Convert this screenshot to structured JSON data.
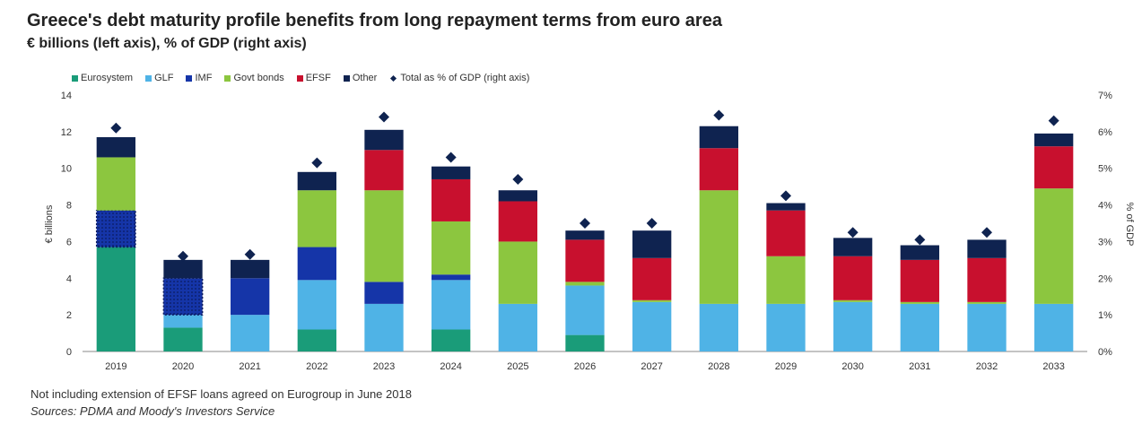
{
  "header": {
    "title": "Greece's debt maturity profile benefits from long repayment terms from euro area",
    "subtitle": "€ billions (left axis), % of GDP (right axis)"
  },
  "legend": {
    "items": [
      {
        "label": "Eurosystem",
        "color": "#1a9c79",
        "marker": "square"
      },
      {
        "label": "GLF",
        "color": "#4fb3e6",
        "marker": "square"
      },
      {
        "label": "IMF",
        "color": "#1535a8",
        "marker": "square"
      },
      {
        "label": "Govt bonds",
        "color": "#8cc63f",
        "marker": "square"
      },
      {
        "label": "EFSF",
        "color": "#c8102e",
        "marker": "square"
      },
      {
        "label": "Other",
        "color": "#0f2350",
        "marker": "square"
      },
      {
        "label": "Total as % of GDP (right axis)",
        "color": "#0f2350",
        "marker": "diamond"
      }
    ]
  },
  "footer": {
    "note": "Not including extension of EFSF loans agreed on Eurogroup in June 2018",
    "sources": "Sources: PDMA and Moody's Investors Service"
  },
  "chart_data": {
    "type": "bar",
    "stacked": true,
    "categories": [
      "2019",
      "2020",
      "2021",
      "2022",
      "2023",
      "2024",
      "2025",
      "2026",
      "2027",
      "2028",
      "2029",
      "2030",
      "2031",
      "2032",
      "2033"
    ],
    "series": [
      {
        "name": "Eurosystem",
        "color": "#1a9c79",
        "values": [
          5.7,
          1.3,
          0,
          1.2,
          0,
          1.2,
          0,
          0.9,
          0,
          0,
          0,
          0,
          0,
          0,
          0
        ]
      },
      {
        "name": "GLF",
        "color": "#4fb3e6",
        "values": [
          0,
          0.7,
          2.0,
          2.7,
          2.6,
          2.7,
          2.6,
          2.7,
          2.7,
          2.6,
          2.6,
          2.7,
          2.6,
          2.6,
          2.6
        ]
      },
      {
        "name": "IMF",
        "color": "#1535a8",
        "values": [
          2.0,
          2.0,
          2.0,
          1.8,
          1.2,
          0.3,
          0,
          0,
          0,
          0,
          0,
          0,
          0,
          0,
          0
        ]
      },
      {
        "name": "Govt bonds",
        "color": "#8cc63f",
        "values": [
          2.9,
          0,
          0,
          3.1,
          5.0,
          2.9,
          3.4,
          0.2,
          0.1,
          6.2,
          2.6,
          0.1,
          0.1,
          0.1,
          6.3
        ]
      },
      {
        "name": "EFSF",
        "color": "#c8102e",
        "values": [
          0,
          0,
          0,
          0,
          2.2,
          2.3,
          2.2,
          2.3,
          2.3,
          2.3,
          2.5,
          2.4,
          2.3,
          2.4,
          2.3
        ]
      },
      {
        "name": "Other",
        "color": "#0f2350",
        "values": [
          1.1,
          1.0,
          1.0,
          1.0,
          1.1,
          0.7,
          0.6,
          0.5,
          1.5,
          1.2,
          0.4,
          1.0,
          0.8,
          1.0,
          0.7
        ]
      }
    ],
    "dotted_segments": [
      {
        "category": "2019",
        "series": "IMF"
      },
      {
        "category": "2020",
        "series": "IMF"
      }
    ],
    "right_axis_series": {
      "name": "Total as % of GDP (right axis)",
      "color": "#0f2350",
      "marker": "diamond",
      "values": [
        6.1,
        2.6,
        2.65,
        5.15,
        6.4,
        5.3,
        4.7,
        3.5,
        3.5,
        6.45,
        4.25,
        3.25,
        3.05,
        3.25,
        6.3
      ]
    },
    "y_left": {
      "label": "€ billions",
      "min": 0,
      "max": 14,
      "ticks": [
        "0",
        "2",
        "4",
        "6",
        "8",
        "10",
        "12",
        "14"
      ]
    },
    "y_right": {
      "label": "% of GDP",
      "min": 0,
      "max": 7,
      "ticks": [
        "0%",
        "1%",
        "2%",
        "3%",
        "4%",
        "5%",
        "6%",
        "7%"
      ]
    },
    "grid": false,
    "legend_position": "top"
  }
}
